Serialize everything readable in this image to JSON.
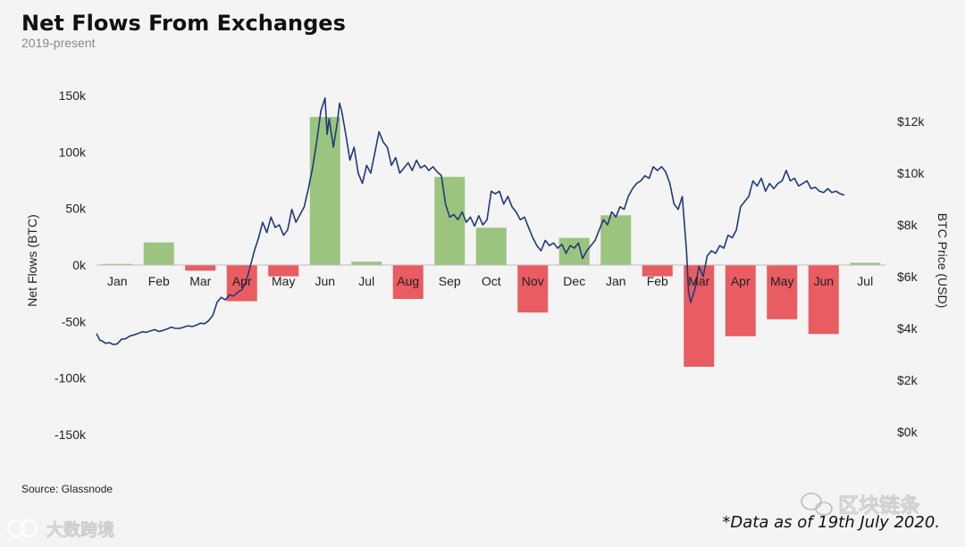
{
  "chart_data": {
    "type": "bar+line",
    "title": "Net Flows From Exchanges",
    "subtitle": "2019-present",
    "ylabel_left": "Net Flows (BTC)",
    "ylabel_right": "BTC Price (USD)",
    "ylim_left": [
      -150000,
      150000
    ],
    "ylim_right": [
      0,
      13000
    ],
    "yticks_left": [
      150000,
      100000,
      50000,
      0,
      -50000,
      -100000,
      -150000
    ],
    "ytick_labels_left": [
      "150k",
      "100k",
      "50k",
      "0k",
      "-50k",
      "-100k",
      "-150k"
    ],
    "yticks_right": [
      12000,
      10000,
      8000,
      6000,
      4000,
      2000,
      0
    ],
    "ytick_labels_right": [
      "$12k",
      "$10k",
      "$8k",
      "$6k",
      "$4k",
      "$2k",
      "$0k"
    ],
    "categories": [
      "Jan",
      "Feb",
      "Mar",
      "Apr",
      "May",
      "Jun",
      "Jul",
      "Aug",
      "Sep",
      "Oct",
      "Nov",
      "Dec",
      "Jan",
      "Feb",
      "Mar",
      "Apr",
      "May",
      "Jun",
      "Jul"
    ],
    "bars": [
      1000,
      20000,
      -5000,
      -32000,
      -10000,
      131000,
      3000,
      -30000,
      78000,
      33000,
      -42000,
      24000,
      44000,
      -10000,
      -90000,
      -63000,
      -48000,
      -61000,
      2000
    ],
    "colors": {
      "positive": "#9bc47f",
      "negative": "#e85c62",
      "price_line": "#1f3a78",
      "baseline": "#bdbdbd"
    },
    "price": [
      [
        0.0,
        3800
      ],
      [
        0.08,
        3550
      ],
      [
        0.15,
        3500
      ],
      [
        0.22,
        3420
      ],
      [
        0.3,
        3450
      ],
      [
        0.4,
        3380
      ],
      [
        0.5,
        3400
      ],
      [
        0.6,
        3580
      ],
      [
        0.7,
        3600
      ],
      [
        0.8,
        3700
      ],
      [
        0.9,
        3750
      ],
      [
        1.0,
        3800
      ],
      [
        1.1,
        3870
      ],
      [
        1.2,
        3850
      ],
      [
        1.3,
        3900
      ],
      [
        1.4,
        3950
      ],
      [
        1.5,
        3880
      ],
      [
        1.6,
        3920
      ],
      [
        1.7,
        3980
      ],
      [
        1.8,
        4050
      ],
      [
        1.9,
        4000
      ],
      [
        2.0,
        4000
      ],
      [
        2.1,
        4050
      ],
      [
        2.2,
        4100
      ],
      [
        2.3,
        4070
      ],
      [
        2.4,
        4120
      ],
      [
        2.5,
        4200
      ],
      [
        2.6,
        4180
      ],
      [
        2.7,
        4300
      ],
      [
        2.8,
        4500
      ],
      [
        2.9,
        5000
      ],
      [
        3.0,
        5200
      ],
      [
        3.1,
        5100
      ],
      [
        3.2,
        5300
      ],
      [
        3.3,
        5250
      ],
      [
        3.4,
        5400
      ],
      [
        3.5,
        5500
      ],
      [
        3.6,
        5800
      ],
      [
        3.7,
        6400
      ],
      [
        3.8,
        7000
      ],
      [
        3.9,
        7500
      ],
      [
        4.0,
        8100
      ],
      [
        4.1,
        7700
      ],
      [
        4.2,
        8300
      ],
      [
        4.3,
        7900
      ],
      [
        4.4,
        8000
      ],
      [
        4.5,
        7600
      ],
      [
        4.6,
        7800
      ],
      [
        4.7,
        8600
      ],
      [
        4.8,
        8100
      ],
      [
        4.9,
        8400
      ],
      [
        5.0,
        8700
      ],
      [
        5.1,
        9400
      ],
      [
        5.2,
        10200
      ],
      [
        5.3,
        11200
      ],
      [
        5.4,
        12400
      ],
      [
        5.5,
        12900
      ],
      [
        5.55,
        11500
      ],
      [
        5.6,
        12100
      ],
      [
        5.7,
        11000
      ],
      [
        5.8,
        12000
      ],
      [
        5.85,
        12700
      ],
      [
        5.9,
        12400
      ],
      [
        6.0,
        11500
      ],
      [
        6.1,
        10500
      ],
      [
        6.2,
        11000
      ],
      [
        6.3,
        10000
      ],
      [
        6.4,
        9600
      ],
      [
        6.5,
        10300
      ],
      [
        6.6,
        10000
      ],
      [
        6.7,
        10800
      ],
      [
        6.8,
        11600
      ],
      [
        6.9,
        11200
      ],
      [
        7.0,
        11000
      ],
      [
        7.1,
        10300
      ],
      [
        7.2,
        10600
      ],
      [
        7.3,
        10000
      ],
      [
        7.4,
        10200
      ],
      [
        7.5,
        10400
      ],
      [
        7.6,
        10100
      ],
      [
        7.7,
        10500
      ],
      [
        7.8,
        10200
      ],
      [
        7.9,
        10300
      ],
      [
        8.0,
        10100
      ],
      [
        8.1,
        10250
      ],
      [
        8.2,
        10050
      ],
      [
        8.3,
        9900
      ],
      [
        8.4,
        8800
      ],
      [
        8.5,
        8300
      ],
      [
        8.6,
        8400
      ],
      [
        8.7,
        8200
      ],
      [
        8.8,
        8500
      ],
      [
        8.9,
        8100
      ],
      [
        9.0,
        8300
      ],
      [
        9.1,
        7950
      ],
      [
        9.2,
        8350
      ],
      [
        9.3,
        8000
      ],
      [
        9.4,
        8200
      ],
      [
        9.5,
        9300
      ],
      [
        9.6,
        9200
      ],
      [
        9.7,
        9300
      ],
      [
        9.8,
        8800
      ],
      [
        9.9,
        9100
      ],
      [
        10.0,
        8700
      ],
      [
        10.1,
        8500
      ],
      [
        10.2,
        8200
      ],
      [
        10.3,
        8300
      ],
      [
        10.4,
        7900
      ],
      [
        10.5,
        7500
      ],
      [
        10.6,
        7200
      ],
      [
        10.7,
        7000
      ],
      [
        10.8,
        7400
      ],
      [
        10.9,
        7200
      ],
      [
        11.0,
        7300
      ],
      [
        11.1,
        7100
      ],
      [
        11.2,
        7250
      ],
      [
        11.3,
        6900
      ],
      [
        11.4,
        7200
      ],
      [
        11.5,
        7100
      ],
      [
        11.6,
        7300
      ],
      [
        11.7,
        6700
      ],
      [
        11.8,
        7000
      ],
      [
        11.9,
        7200
      ],
      [
        12.0,
        7400
      ],
      [
        12.1,
        7800
      ],
      [
        12.2,
        8200
      ],
      [
        12.3,
        8000
      ],
      [
        12.4,
        8500
      ],
      [
        12.5,
        8300
      ],
      [
        12.6,
        8700
      ],
      [
        12.7,
        8600
      ],
      [
        12.8,
        9100
      ],
      [
        12.9,
        9400
      ],
      [
        13.0,
        9600
      ],
      [
        13.1,
        9700
      ],
      [
        13.2,
        9900
      ],
      [
        13.3,
        9800
      ],
      [
        13.4,
        10250
      ],
      [
        13.5,
        10100
      ],
      [
        13.6,
        10250
      ],
      [
        13.7,
        10050
      ],
      [
        13.8,
        9600
      ],
      [
        13.9,
        8800
      ],
      [
        14.0,
        8600
      ],
      [
        14.1,
        9100
      ],
      [
        14.2,
        7000
      ],
      [
        14.25,
        5400
      ],
      [
        14.3,
        5000
      ],
      [
        14.4,
        5500
      ],
      [
        14.5,
        6400
      ],
      [
        14.6,
        6000
      ],
      [
        14.7,
        6800
      ],
      [
        14.8,
        7000
      ],
      [
        14.9,
        6900
      ],
      [
        15.0,
        7200
      ],
      [
        15.1,
        7100
      ],
      [
        15.2,
        7600
      ],
      [
        15.3,
        7500
      ],
      [
        15.4,
        7800
      ],
      [
        15.5,
        8700
      ],
      [
        15.6,
        8900
      ],
      [
        15.7,
        9100
      ],
      [
        15.8,
        9700
      ],
      [
        15.9,
        9500
      ],
      [
        16.0,
        9800
      ],
      [
        16.1,
        9300
      ],
      [
        16.2,
        9600
      ],
      [
        16.3,
        9400
      ],
      [
        16.4,
        9600
      ],
      [
        16.5,
        9700
      ],
      [
        16.6,
        10100
      ],
      [
        16.7,
        9700
      ],
      [
        16.8,
        9800
      ],
      [
        16.9,
        9500
      ],
      [
        17.0,
        9600
      ],
      [
        17.1,
        9700
      ],
      [
        17.2,
        9400
      ],
      [
        17.3,
        9450
      ],
      [
        17.4,
        9300
      ],
      [
        17.5,
        9250
      ],
      [
        17.6,
        9400
      ],
      [
        17.7,
        9250
      ],
      [
        17.8,
        9300
      ],
      [
        17.9,
        9200
      ],
      [
        18.0,
        9150
      ]
    ]
  },
  "source": "Source: Glassnode",
  "note": "*Data as of 19th July 2020.",
  "watermark_left": "大数跨境",
  "watermark_right": "区块链条"
}
